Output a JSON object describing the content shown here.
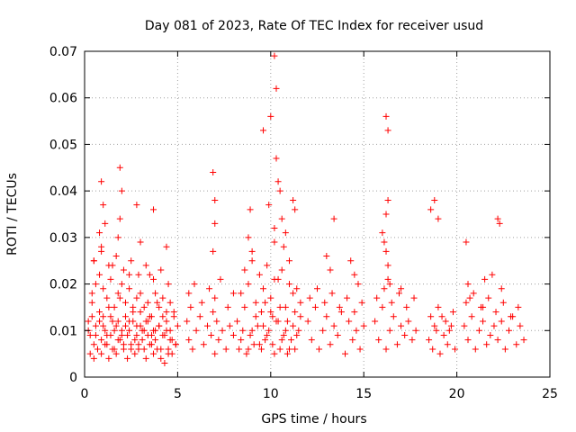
{
  "chart_data": {
    "type": "scatter",
    "title": "Day 081 of 2023, Rate Of TEC Index for receiver usud",
    "xlabel": "GPS time / hours",
    "ylabel": "ROTI / TECUs",
    "xlim": [
      0,
      25
    ],
    "ylim": [
      0,
      0.07
    ],
    "xticks": [
      "0",
      "5",
      "10",
      "15",
      "20",
      "25"
    ],
    "yticks": [
      "0",
      "0.01",
      "0.02",
      "0.03",
      "0.04",
      "0.05",
      "0.06",
      "0.07"
    ],
    "grid": true,
    "marker": "+",
    "color": "#ff0000",
    "series": [
      {
        "x": [
          0.2,
          0.3,
          0.4,
          0.5,
          0.6,
          0.7,
          0.8,
          0.9,
          1.0,
          1.1,
          1.2,
          1.3,
          1.4,
          1.5,
          1.6,
          1.7,
          1.8,
          1.9,
          2.0,
          2.1,
          2.2,
          2.3,
          2.4,
          2.5,
          2.6,
          2.7,
          2.8,
          2.9,
          3.0,
          3.1,
          3.2,
          3.3,
          3.4,
          3.5,
          3.6,
          3.7,
          3.8,
          3.9,
          4.0,
          4.1,
          4.2,
          4.3,
          4.4,
          4.5,
          4.6,
          4.7,
          4.8,
          4.9,
          5.0,
          0.3,
          0.5,
          0.7,
          0.9,
          1.1,
          1.3,
          1.5,
          1.7,
          1.9,
          2.1,
          2.3,
          2.5,
          2.7,
          2.9,
          3.1,
          3.3,
          3.5,
          3.7,
          3.9,
          4.1,
          4.3,
          4.5,
          4.7,
          4.9,
          0.4,
          0.6,
          0.8,
          1.0,
          1.2,
          1.4,
          1.6,
          1.8,
          2.0,
          2.2,
          2.4,
          2.6,
          2.8,
          3.0,
          3.2,
          3.4,
          3.6,
          3.8,
          4.0,
          4.2,
          4.4,
          4.6,
          4.8,
          0.2,
          0.4,
          0.6,
          0.8,
          1.0,
          1.2,
          1.4,
          1.6,
          1.8,
          2.0,
          2.2,
          2.4,
          2.6,
          2.8,
          3.0,
          3.2,
          3.4,
          3.6,
          3.8,
          4.0,
          4.2,
          4.4,
          4.6,
          0.5,
          0.9,
          1.3,
          1.7,
          2.1,
          2.5,
          2.9,
          3.3,
          3.7,
          4.1,
          4.5,
          0.9,
          1.0,
          1.1,
          1.9,
          2.0,
          1.9,
          1.8,
          2.8,
          3.0,
          3.7,
          4.4,
          0.8,
          0.5,
          0.9,
          1.5,
          2.4,
          3.5,
          5.5,
          5.6,
          5.7,
          5.8,
          6.0,
          6.2,
          6.4,
          6.6,
          6.8,
          6.9,
          7.0,
          7.1,
          7.2,
          7.4,
          7.6,
          7.8,
          8.0,
          5.6,
          5.9,
          6.3,
          6.7,
          7.0,
          7.3,
          7.7,
          8.0,
          6.9,
          7.0,
          7.0,
          6.9,
          8.9,
          8.2,
          8.4,
          8.6,
          8.8,
          9.0,
          9.2,
          9.4,
          9.6,
          9.8,
          10.0,
          10.2,
          10.4,
          10.6,
          10.8,
          11.0,
          11.2,
          11.4,
          11.6,
          8.3,
          8.5,
          8.7,
          8.9,
          9.1,
          9.3,
          9.5,
          9.7,
          9.9,
          10.1,
          10.3,
          10.5,
          10.7,
          10.9,
          11.1,
          11.3,
          11.5,
          8.4,
          8.8,
          9.2,
          9.6,
          10.0,
          10.4,
          10.8,
          11.2,
          11.6,
          8.6,
          9.0,
          9.4,
          9.8,
          10.2,
          10.6,
          11.0,
          11.4,
          8.8,
          9.0,
          9.9,
          10.0,
          9.6,
          10.2,
          10.3,
          10.3,
          10.2,
          10.2,
          10.4,
          10.5,
          10.6,
          10.7,
          10.8,
          11.0,
          11.2,
          11.3,
          9.5,
          9.7,
          10.1,
          10.5,
          10.9,
          11.3,
          12.0,
          12.2,
          12.4,
          12.6,
          12.8,
          13.0,
          13.2,
          13.4,
          13.6,
          13.8,
          14.0,
          14.2,
          14.4,
          14.6,
          14.8,
          15.0,
          12.1,
          12.5,
          12.9,
          13.3,
          13.7,
          14.1,
          14.5,
          14.9,
          13.0,
          13.2,
          13.4,
          14.3,
          14.5,
          14.7,
          15.6,
          15.8,
          16.0,
          16.2,
          16.4,
          16.6,
          16.8,
          17.0,
          17.2,
          17.4,
          17.6,
          17.8,
          15.7,
          16.1,
          16.5,
          16.9,
          17.3,
          17.7,
          16.0,
          16.1,
          16.2,
          16.3,
          16.3,
          16.2,
          16.2,
          16.3,
          16.3,
          16.4,
          17.0,
          18.5,
          18.7,
          18.9,
          19.1,
          19.3,
          19.5,
          19.7,
          19.9,
          18.6,
          19.0,
          19.4,
          19.8,
          18.8,
          19.2,
          19.6,
          18.6,
          18.8,
          19.0,
          20.4,
          20.6,
          20.8,
          21.0,
          21.2,
          21.4,
          21.6,
          21.8,
          22.0,
          22.2,
          22.4,
          22.6,
          22.8,
          23.0,
          23.2,
          23.4,
          23.6,
          20.5,
          20.9,
          21.3,
          21.7,
          22.1,
          22.5,
          22.9,
          23.3,
          20.5,
          20.6,
          21.5,
          21.9,
          22.2,
          22.3,
          22.4,
          20.7,
          21.4
        ],
        "y": [
          0.012,
          0.009,
          0.016,
          0.007,
          0.011,
          0.006,
          0.014,
          0.008,
          0.013,
          0.01,
          0.007,
          0.015,
          0.009,
          0.012,
          0.006,
          0.011,
          0.008,
          0.017,
          0.01,
          0.007,
          0.013,
          0.009,
          0.012,
          0.006,
          0.015,
          0.008,
          0.011,
          0.007,
          0.014,
          0.01,
          0.006,
          0.012,
          0.009,
          0.013,
          0.007,
          0.01,
          0.008,
          0.016,
          0.011,
          0.006,
          0.013,
          0.009,
          0.012,
          0.005,
          0.01,
          0.008,
          0.014,
          0.007,
          0.011,
          0.005,
          0.004,
          0.006,
          0.005,
          0.007,
          0.004,
          0.006,
          0.005,
          0.008,
          0.006,
          0.004,
          0.007,
          0.005,
          0.006,
          0.008,
          0.004,
          0.007,
          0.005,
          0.006,
          0.004,
          0.003,
          0.006,
          0.005,
          0.007,
          0.018,
          0.02,
          0.022,
          0.019,
          0.017,
          0.021,
          0.015,
          0.018,
          0.02,
          0.016,
          0.019,
          0.014,
          0.017,
          0.018,
          0.015,
          0.016,
          0.013,
          0.018,
          0.015,
          0.017,
          0.014,
          0.016,
          0.013,
          0.01,
          0.013,
          0.009,
          0.012,
          0.011,
          0.009,
          0.013,
          0.01,
          0.012,
          0.009,
          0.011,
          0.01,
          0.012,
          0.009,
          0.011,
          0.01,
          0.012,
          0.009,
          0.01,
          0.011,
          0.009,
          0.01,
          0.008,
          0.025,
          0.027,
          0.024,
          0.026,
          0.023,
          0.025,
          0.022,
          0.024,
          0.021,
          0.023,
          0.02,
          0.042,
          0.037,
          0.033,
          0.045,
          0.04,
          0.034,
          0.03,
          0.037,
          0.029,
          0.036,
          0.028,
          0.031,
          0.025,
          0.028,
          0.024,
          0.022,
          0.022,
          0.012,
          0.008,
          0.015,
          0.006,
          0.01,
          0.013,
          0.007,
          0.011,
          0.009,
          0.014,
          0.005,
          0.012,
          0.008,
          0.01,
          0.006,
          0.011,
          0.009,
          0.018,
          0.02,
          0.016,
          0.019,
          0.017,
          0.021,
          0.015,
          0.018,
          0.044,
          0.038,
          0.033,
          0.027,
          0.036,
          0.012,
          0.008,
          0.015,
          0.006,
          0.01,
          0.013,
          0.007,
          0.011,
          0.009,
          0.014,
          0.005,
          0.012,
          0.008,
          0.01,
          0.006,
          0.011,
          0.009,
          0.013,
          0.006,
          0.01,
          0.005,
          0.009,
          0.007,
          0.011,
          0.006,
          0.008,
          0.01,
          0.007,
          0.012,
          0.006,
          0.009,
          0.005,
          0.008,
          0.006,
          0.01,
          0.018,
          0.02,
          0.016,
          0.019,
          0.017,
          0.021,
          0.015,
          0.018,
          0.016,
          0.023,
          0.025,
          0.022,
          0.024,
          0.021,
          0.023,
          0.02,
          0.019,
          0.03,
          0.027,
          0.037,
          0.056,
          0.053,
          0.069,
          0.062,
          0.047,
          0.032,
          0.029,
          0.042,
          0.04,
          0.034,
          0.028,
          0.031,
          0.025,
          0.038,
          0.036,
          0.014,
          0.016,
          0.013,
          0.015,
          0.012,
          0.014,
          0.012,
          0.008,
          0.015,
          0.006,
          0.01,
          0.013,
          0.007,
          0.011,
          0.009,
          0.014,
          0.005,
          0.012,
          0.008,
          0.01,
          0.006,
          0.011,
          0.017,
          0.019,
          0.016,
          0.018,
          0.015,
          0.017,
          0.014,
          0.016,
          0.026,
          0.023,
          0.034,
          0.025,
          0.022,
          0.02,
          0.012,
          0.008,
          0.015,
          0.006,
          0.01,
          0.013,
          0.007,
          0.011,
          0.009,
          0.012,
          0.008,
          0.01,
          0.017,
          0.019,
          0.016,
          0.018,
          0.015,
          0.017,
          0.031,
          0.029,
          0.056,
          0.053,
          0.038,
          0.035,
          0.027,
          0.024,
          0.021,
          0.02,
          0.019,
          0.008,
          0.006,
          0.01,
          0.005,
          0.009,
          0.007,
          0.011,
          0.006,
          0.013,
          0.015,
          0.012,
          0.014,
          0.011,
          0.013,
          0.01,
          0.036,
          0.038,
          0.034,
          0.011,
          0.008,
          0.013,
          0.006,
          0.01,
          0.012,
          0.007,
          0.009,
          0.011,
          0.008,
          0.012,
          0.006,
          0.01,
          0.013,
          0.007,
          0.011,
          0.008,
          0.016,
          0.018,
          0.015,
          0.017,
          0.014,
          0.016,
          0.013,
          0.015,
          0.029,
          0.02,
          0.021,
          0.022,
          0.034,
          0.033,
          0.019,
          0.017,
          0.015
        ]
      }
    ]
  }
}
